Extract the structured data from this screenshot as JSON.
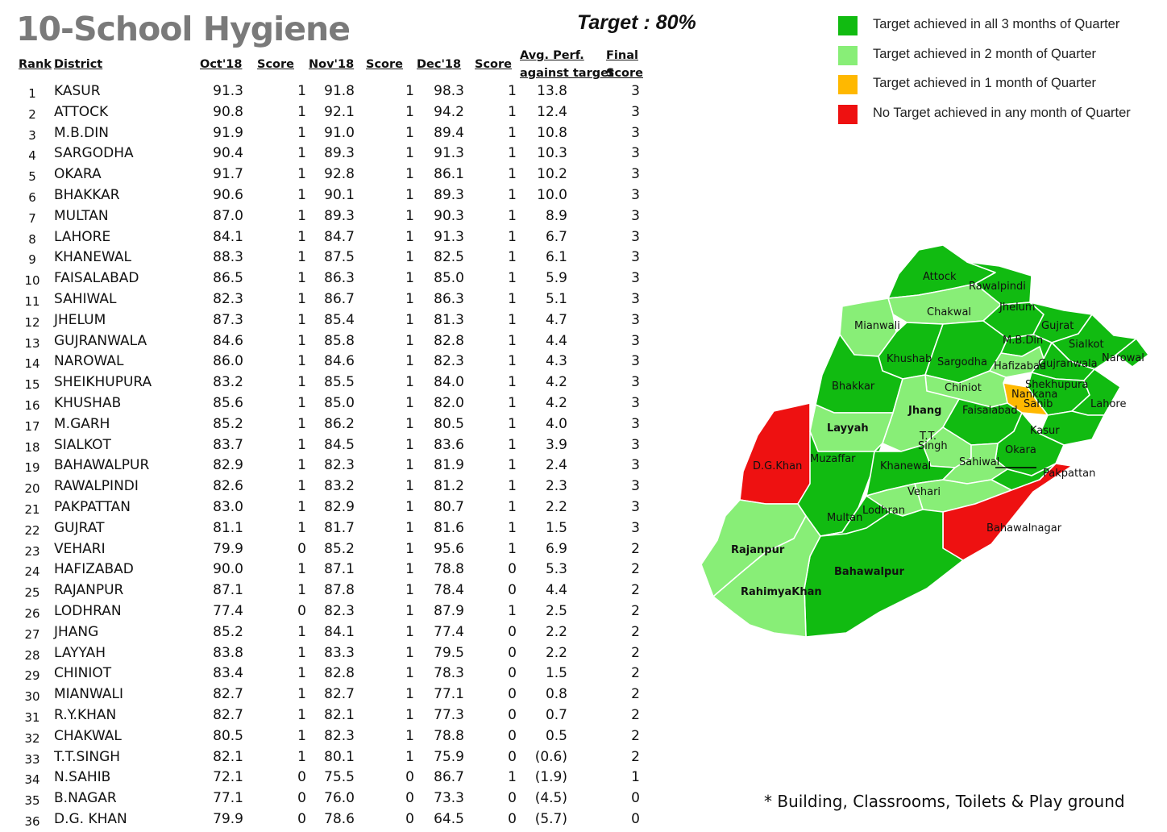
{
  "title": "10-School Hygiene",
  "target": "Target : 80%",
  "headers": {
    "rank": "Rank",
    "district": "District",
    "oct": "Oct'18",
    "score1": "Score",
    "nov": "Nov'18",
    "score2": "Score",
    "dec": "Dec'18",
    "score3": "Score",
    "avg_line1": "Avg. Perf.",
    "avg_line2": "against target",
    "final_line1": "Final",
    "final_line2": "Score"
  },
  "rows": [
    [
      "1",
      "KASUR",
      "91.3",
      "1",
      "91.8",
      "1",
      "98.3",
      "1",
      "13.8",
      "3"
    ],
    [
      "2",
      "ATTOCK",
      "90.8",
      "1",
      "92.1",
      "1",
      "94.2",
      "1",
      "12.4",
      "3"
    ],
    [
      "3",
      "M.B.DIN",
      "91.9",
      "1",
      "91.0",
      "1",
      "89.4",
      "1",
      "10.8",
      "3"
    ],
    [
      "4",
      "SARGODHA",
      "90.4",
      "1",
      "89.3",
      "1",
      "91.3",
      "1",
      "10.3",
      "3"
    ],
    [
      "5",
      "OKARA",
      "91.7",
      "1",
      "92.8",
      "1",
      "86.1",
      "1",
      "10.2",
      "3"
    ],
    [
      "6",
      "BHAKKAR",
      "90.6",
      "1",
      "90.1",
      "1",
      "89.3",
      "1",
      "10.0",
      "3"
    ],
    [
      "7",
      "MULTAN",
      "87.0",
      "1",
      "89.3",
      "1",
      "90.3",
      "1",
      "8.9",
      "3"
    ],
    [
      "8",
      "LAHORE",
      "84.1",
      "1",
      "84.7",
      "1",
      "91.3",
      "1",
      "6.7",
      "3"
    ],
    [
      "9",
      "KHANEWAL",
      "88.3",
      "1",
      "87.5",
      "1",
      "82.5",
      "1",
      "6.1",
      "3"
    ],
    [
      "10",
      "FAISALABAD",
      "86.5",
      "1",
      "86.3",
      "1",
      "85.0",
      "1",
      "5.9",
      "3"
    ],
    [
      "11",
      "SAHIWAL",
      "82.3",
      "1",
      "86.7",
      "1",
      "86.3",
      "1",
      "5.1",
      "3"
    ],
    [
      "12",
      "JHELUM",
      "87.3",
      "1",
      "85.4",
      "1",
      "81.3",
      "1",
      "4.7",
      "3"
    ],
    [
      "13",
      "GUJRANWALA",
      "84.6",
      "1",
      "85.8",
      "1",
      "82.8",
      "1",
      "4.4",
      "3"
    ],
    [
      "14",
      "NAROWAL",
      "86.0",
      "1",
      "84.6",
      "1",
      "82.3",
      "1",
      "4.3",
      "3"
    ],
    [
      "15",
      "SHEIKHUPURA",
      "83.2",
      "1",
      "85.5",
      "1",
      "84.0",
      "1",
      "4.2",
      "3"
    ],
    [
      "16",
      "KHUSHAB",
      "85.6",
      "1",
      "85.0",
      "1",
      "82.0",
      "1",
      "4.2",
      "3"
    ],
    [
      "17",
      "M.GARH",
      "85.2",
      "1",
      "86.2",
      "1",
      "80.5",
      "1",
      "4.0",
      "3"
    ],
    [
      "18",
      "SIALKOT",
      "83.7",
      "1",
      "84.5",
      "1",
      "83.6",
      "1",
      "3.9",
      "3"
    ],
    [
      "19",
      "BAHAWALPUR",
      "82.9",
      "1",
      "82.3",
      "1",
      "81.9",
      "1",
      "2.4",
      "3"
    ],
    [
      "20",
      "RAWALPINDI",
      "82.6",
      "1",
      "83.2",
      "1",
      "81.2",
      "1",
      "2.3",
      "3"
    ],
    [
      "21",
      "PAKPATTAN",
      "83.0",
      "1",
      "82.9",
      "1",
      "80.7",
      "1",
      "2.2",
      "3"
    ],
    [
      "22",
      "GUJRAT",
      "81.1",
      "1",
      "81.7",
      "1",
      "81.6",
      "1",
      "1.5",
      "3"
    ],
    [
      "23",
      "VEHARI",
      "79.9",
      "0",
      "85.2",
      "1",
      "95.6",
      "1",
      "6.9",
      "2"
    ],
    [
      "24",
      "HAFIZABAD",
      "90.0",
      "1",
      "87.1",
      "1",
      "78.8",
      "0",
      "5.3",
      "2"
    ],
    [
      "25",
      "RAJANPUR",
      "87.1",
      "1",
      "87.8",
      "1",
      "78.4",
      "0",
      "4.4",
      "2"
    ],
    [
      "26",
      "LODHRAN",
      "77.4",
      "0",
      "82.3",
      "1",
      "87.9",
      "1",
      "2.5",
      "2"
    ],
    [
      "27",
      "JHANG",
      "85.2",
      "1",
      "84.1",
      "1",
      "77.4",
      "0",
      "2.2",
      "2"
    ],
    [
      "28",
      "LAYYAH",
      "83.8",
      "1",
      "83.3",
      "1",
      "79.5",
      "0",
      "2.2",
      "2"
    ],
    [
      "29",
      "CHINIOT",
      "83.4",
      "1",
      "82.8",
      "1",
      "78.3",
      "0",
      "1.5",
      "2"
    ],
    [
      "30",
      "MIANWALI",
      "82.7",
      "1",
      "82.7",
      "1",
      "77.1",
      "0",
      "0.8",
      "2"
    ],
    [
      "31",
      "R.Y.KHAN",
      "82.7",
      "1",
      "82.1",
      "1",
      "77.3",
      "0",
      "0.7",
      "2"
    ],
    [
      "32",
      "CHAKWAL",
      "80.5",
      "1",
      "82.3",
      "1",
      "78.8",
      "0",
      "0.5",
      "2"
    ],
    [
      "33",
      "T.T.SINGH",
      "82.1",
      "1",
      "80.1",
      "1",
      "75.9",
      "0",
      "(0.6)",
      "2"
    ],
    [
      "34",
      "N.SAHIB",
      "72.1",
      "0",
      "75.5",
      "0",
      "86.7",
      "1",
      "(1.9)",
      "1"
    ],
    [
      "35",
      "B.NAGAR",
      "77.1",
      "0",
      "76.0",
      "0",
      "73.3",
      "0",
      "(4.5)",
      "0"
    ],
    [
      "36",
      "D.G. KHAN",
      "79.9",
      "0",
      "78.6",
      "0",
      "64.5",
      "0",
      "(5.7)",
      "0"
    ]
  ],
  "legend": [
    {
      "label": "Target achieved in all 3 months of Quarter",
      "color": "#11bb11"
    },
    {
      "label": "Target achieved in 2 month of Quarter",
      "color": "#88ee77"
    },
    {
      "label": "Target achieved in 1 month of Quarter",
      "color": "#ffb800"
    },
    {
      "label": "No Target achieved in any month of Quarter",
      "color": "#ee1111"
    }
  ],
  "map": {
    "colors": {
      "green": "#11bb11",
      "light": "#88ee77",
      "orange": "#ffb800",
      "red": "#ee1111",
      "border": "#ffffff"
    },
    "labels": {
      "attock": "Attock",
      "rawalpindi": "Rawalpindi",
      "chakwal": "Chakwal",
      "jhelum": "Jhelum",
      "mianwali": "Mianwali",
      "gujrat": "Gujrat",
      "mbdin": "M.B.Din",
      "sialkot": "Sialkot",
      "narowal": "Narowal",
      "khushab": "Khushab",
      "sargodha": "Sargodha",
      "hafizabad": "Hafizabad",
      "gujranwala": "Gujranwala",
      "sheikhupura": "Shekhupura",
      "nankana_1": "Nankana",
      "nankana_2": "Sahib",
      "bhakkar": "Bhakkar",
      "chiniot": "Chiniot",
      "jhang": "Jhang",
      "faisalabad": "Faisalabad",
      "lahore": "Lahore",
      "layyah": "Layyah",
      "tt_1": "T.T.",
      "tt_2": "Singh",
      "kasur": "Kasur",
      "okara": "Okara",
      "dgkhan": "D.G.Khan",
      "muzaffargarh": "Muzaffar",
      "khanewal": "Khanewal",
      "sahiwal": "Sahiwal",
      "pakpattan": "Pakpattan",
      "vehari": "Vehari",
      "multan": "Multan",
      "lodhran": "Lodhran",
      "bahawalnagar": "Bahawalnagar",
      "rajanpur": "Rajanpur",
      "bahawalpur": "Bahawalpur",
      "rykhan": "RahimyaKhan"
    }
  },
  "footnote": "* Building, Classrooms, Toilets & Play ground"
}
